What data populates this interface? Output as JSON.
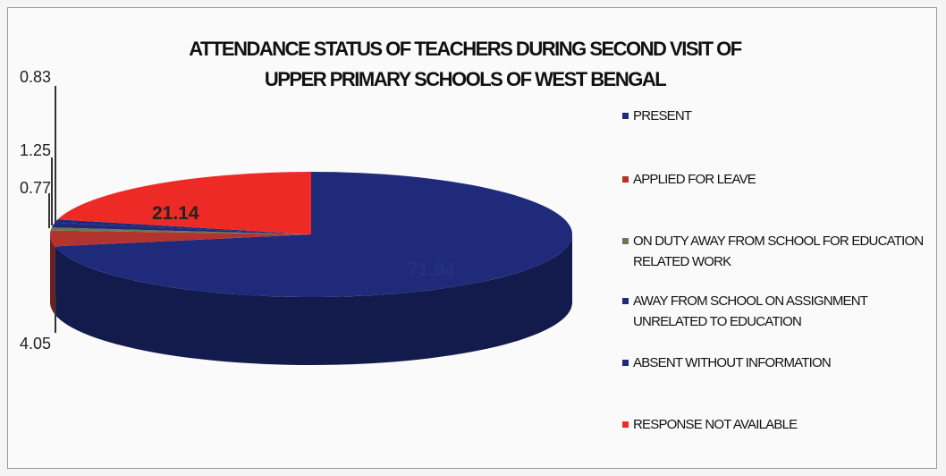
{
  "chart_data": {
    "type": "pie",
    "title_lines": [
      "ATTENDANCE STATUS OF TEACHERS DURING SECOND VISIT OF",
      "UPPER PRIMARY SCHOOLS OF WEST BENGAL"
    ],
    "categories": [
      "PRESENT",
      "APPLIED FOR LEAVE",
      "ON DUTY AWAY FROM SCHOOL FOR EDUCATION RELATED WORK",
      "AWAY FROM SCHOOL ON ASSIGNMENT UNRELATED TO EDUCATION",
      "ABSENT WITHOUT INFORMATION",
      "RESPONSE NOT AVAILABLE"
    ],
    "values": [
      71.94,
      4.05,
      0.77,
      1.25,
      0.83,
      21.14
    ],
    "data_labels": [
      "71.94",
      "4.05",
      "0.77",
      "1.25",
      "0.83",
      "21.14"
    ],
    "colors": [
      "#1f2a7a",
      "#b3332e",
      "#6a7a4e",
      "#1f2a7a",
      "#1f2a7a",
      "#ee2a26"
    ],
    "legend_position": "right",
    "style": "3d"
  }
}
